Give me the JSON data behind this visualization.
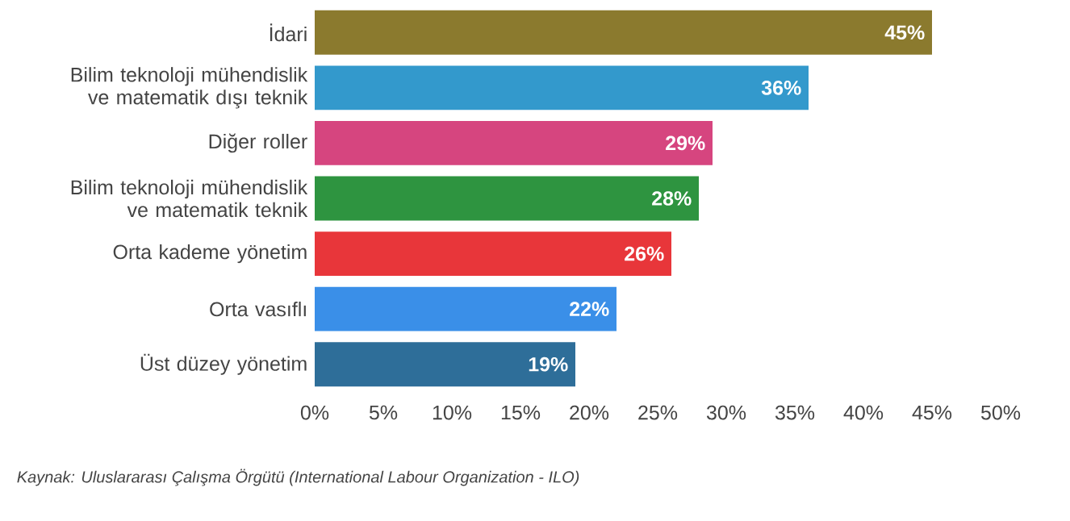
{
  "chart_data": {
    "type": "bar",
    "orientation": "horizontal",
    "categories": [
      "İdari",
      "Bilim teknoloji mühendislik ve matematik dışı teknik",
      "Diğer roller",
      "Bilim teknoloji mühendislik ve matematik teknik",
      "Orta kademe yönetim",
      "Orta vasıflı",
      "Üst düzey yönetim"
    ],
    "values": [
      45,
      36,
      29,
      28,
      26,
      22,
      19
    ],
    "colors": [
      "#8b7a2e",
      "#3399cc",
      "#d6457f",
      "#2e9440",
      "#e8363a",
      "#3a8fe8",
      "#2e6e99"
    ],
    "value_labels": [
      "45%",
      "36%",
      "29%",
      "28%",
      "26%",
      "22%",
      "19%"
    ],
    "xlim": [
      0,
      50
    ],
    "xticks": [
      {
        "value": 0,
        "label": "0%"
      },
      {
        "value": 5,
        "label": "5%"
      },
      {
        "value": 10,
        "label": "10%"
      },
      {
        "value": 15,
        "label": "15%"
      },
      {
        "value": 20,
        "label": "20%"
      },
      {
        "value": 25,
        "label": "25%"
      },
      {
        "value": 30,
        "label": "30%"
      },
      {
        "value": 35,
        "label": "35%"
      },
      {
        "value": 40,
        "label": "40%"
      },
      {
        "value": 45,
        "label": "45%"
      },
      {
        "value": 50,
        "label": "50%"
      }
    ],
    "annotations": [
      "Kaynak: Uluslararası Çalışma Örgütü (International Labour Organization - ILO)"
    ]
  }
}
